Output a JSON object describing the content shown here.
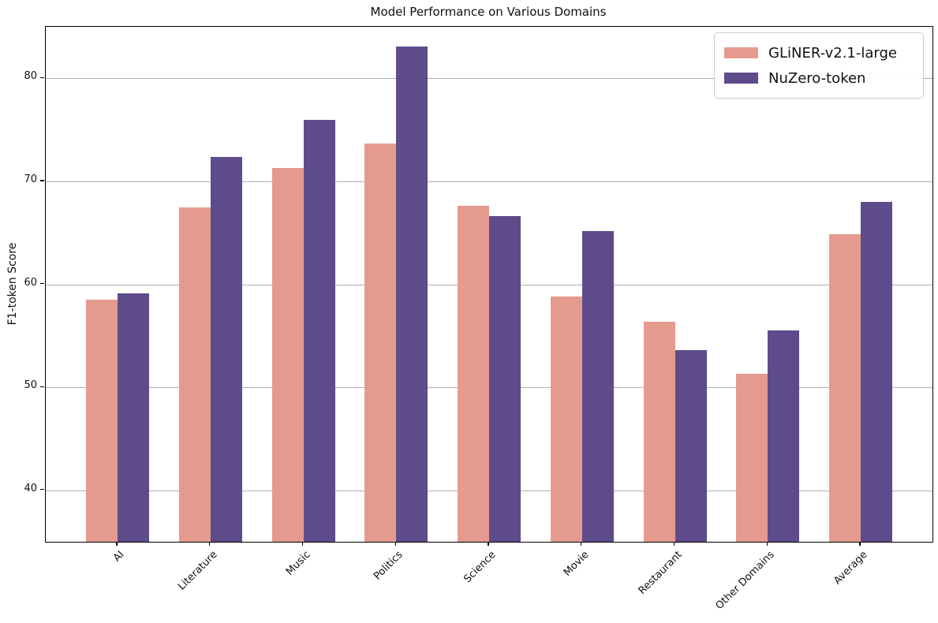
{
  "title": "Model Performance on Various Domains",
  "chart_data": {
    "type": "bar",
    "title": "Model Performance on Various Domains",
    "xlabel": "",
    "ylabel": "F1-token Score",
    "categories": [
      "AI",
      "Literature",
      "Music",
      "Politics",
      "Science",
      "Movie",
      "Restaurant",
      "Other Domains",
      "Average"
    ],
    "series": [
      {
        "name": "GLiNER-v2.1-large",
        "color": "#e59a8e",
        "values": [
          58.5,
          67.5,
          71.3,
          73.7,
          67.6,
          58.8,
          56.4,
          51.3,
          64.9
        ]
      },
      {
        "name": "NuZero-token",
        "color": "#5e4b8b",
        "values": [
          59.1,
          72.4,
          76.0,
          83.1,
          66.6,
          65.2,
          53.6,
          55.5,
          68.0
        ]
      }
    ],
    "ylim": [
      35,
      85
    ],
    "yticks": [
      40,
      50,
      60,
      70,
      80
    ],
    "grid": true,
    "legend_position": "upper right",
    "colors": {
      "grid": "#b0b0b0",
      "spine": "#000000",
      "text": "#111111",
      "legend_border": "#cccccc"
    }
  }
}
